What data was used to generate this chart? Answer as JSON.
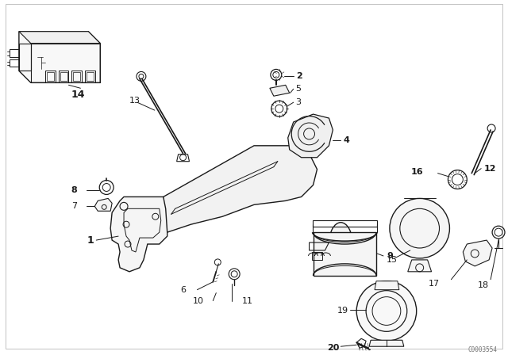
{
  "background_color": "#ffffff",
  "line_color": "#1a1a1a",
  "fig_width": 6.4,
  "fig_height": 4.48,
  "dpi": 100,
  "watermark": "C0003554",
  "border_color": "#cccccc",
  "label_fontsize": 8,
  "label_bold_fontsize": 9
}
